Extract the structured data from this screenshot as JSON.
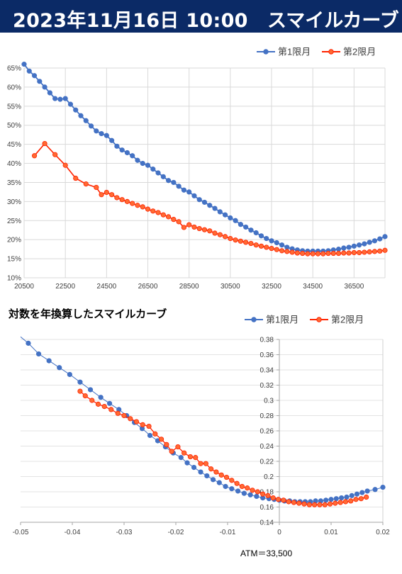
{
  "header": {
    "title": "2023年11月16日 10:00",
    "subtitle": "スマイルカーブ"
  },
  "chart2_title": "対数を年換算したスマイルカーブ",
  "atm_label": "ATM＝33,500",
  "colors": {
    "series1": "#4472c4",
    "series2": "#ff2200",
    "series2_fill": "#ff6a33",
    "header_bg": "#0b2a66"
  },
  "chart_data": [
    {
      "type": "line",
      "title": "",
      "xlabel": "",
      "ylabel": "",
      "xlim": [
        20500,
        38000
      ],
      "ylim": [
        10,
        65
      ],
      "x_ticks": [
        "20500",
        "22500",
        "24500",
        "26500",
        "28500",
        "30500",
        "32500",
        "34500",
        "36500"
      ],
      "y_ticks": [
        "10%",
        "15%",
        "20%",
        "25%",
        "30%",
        "35%",
        "40%",
        "45%",
        "50%",
        "55%",
        "60%",
        "65%"
      ],
      "legend": "top-right",
      "series": [
        {
          "name": "第1限月",
          "x": [
            20500,
            20750,
            21000,
            21250,
            21500,
            21750,
            22000,
            22250,
            22500,
            22750,
            23000,
            23250,
            23500,
            23750,
            24000,
            24250,
            24500,
            24750,
            25000,
            25250,
            25500,
            25750,
            26000,
            26250,
            26500,
            26750,
            27000,
            27250,
            27500,
            27750,
            28000,
            28250,
            28500,
            28750,
            29000,
            29250,
            29500,
            29750,
            30000,
            30250,
            30500,
            30750,
            31000,
            31250,
            31500,
            31750,
            32000,
            32250,
            32500,
            32750,
            33000,
            33250,
            33500,
            33750,
            34000,
            34250,
            34500,
            34750,
            35000,
            35250,
            35500,
            35750,
            36000,
            36250,
            36500,
            36750,
            37000,
            37250,
            37500,
            37750,
            38000
          ],
          "y": [
            66,
            64.2,
            63,
            61.5,
            60,
            58.5,
            57,
            56.8,
            57,
            55.5,
            54,
            52.5,
            51.2,
            49.8,
            48.5,
            47.8,
            47.3,
            46,
            44.5,
            43.5,
            42.8,
            42,
            40.8,
            40,
            39.5,
            38.5,
            37.5,
            36.5,
            35.5,
            35,
            34,
            33,
            32.5,
            31.5,
            30.5,
            29.8,
            29,
            28.2,
            27.3,
            26.5,
            25.7,
            25,
            24,
            23.3,
            22.5,
            21.8,
            21,
            20.3,
            19.7,
            19.2,
            18.6,
            18,
            17.6,
            17.3,
            17.1,
            17,
            17,
            17,
            17,
            17.1,
            17.3,
            17.5,
            17.8,
            18,
            18.3,
            18.6,
            18.9,
            19.3,
            19.7,
            20.2,
            20.8
          ]
        },
        {
          "name": "第2限月",
          "x": [
            21000,
            21500,
            22000,
            22500,
            23000,
            23500,
            24000,
            24250,
            24500,
            24750,
            25000,
            25250,
            25500,
            25750,
            26000,
            26250,
            26500,
            26750,
            27000,
            27250,
            27500,
            27750,
            28000,
            28250,
            28500,
            28750,
            29000,
            29250,
            29500,
            29750,
            30000,
            30250,
            30500,
            30750,
            31000,
            31250,
            31500,
            31750,
            32000,
            32250,
            32500,
            32750,
            33000,
            33250,
            33500,
            33750,
            34000,
            34250,
            34500,
            34750,
            35000,
            35250,
            35500,
            35750,
            36000,
            36250,
            36500,
            36750,
            37000,
            37250,
            37500,
            37750,
            38000
          ],
          "y": [
            42,
            45.2,
            42.3,
            39.5,
            36.1,
            34.6,
            33.7,
            31.8,
            32.4,
            31.8,
            31,
            30.5,
            30,
            29.5,
            29,
            28.6,
            28,
            27.5,
            27.1,
            26.5,
            26,
            25.3,
            24.7,
            23.2,
            23.9,
            23.3,
            22.9,
            22.6,
            22.3,
            21.7,
            21.3,
            20.8,
            20.3,
            19.9,
            19.6,
            19.3,
            19,
            18.6,
            18.3,
            18,
            17.7,
            17.4,
            17.1,
            16.9,
            16.7,
            16.5,
            16.4,
            16.3,
            16.3,
            16.3,
            16.3,
            16.4,
            16.4,
            16.4,
            16.5,
            16.5,
            16.6,
            16.6,
            16.7,
            16.8,
            16.9,
            17,
            17.2
          ]
        }
      ]
    },
    {
      "type": "line",
      "title": "対数を年換算したスマイルカーブ",
      "xlabel": "",
      "ylabel": "",
      "xlim": [
        -0.05,
        0.02
      ],
      "ylim": [
        0.14,
        0.38
      ],
      "x_ticks": [
        "-0.05",
        "-0.04",
        "-0.03",
        "-0.02",
        "-0.01",
        "0",
        "0.01",
        "0.02"
      ],
      "y_ticks": [
        "0.14",
        "0.16",
        "0.18",
        "0.2",
        "0.22",
        "0.24",
        "0.26",
        "0.28",
        "0.3",
        "0.32",
        "0.34",
        "0.36",
        "0.38"
      ],
      "legend": "top-right",
      "series": [
        {
          "name": "第1限月",
          "x": [
            -0.051,
            -0.0485,
            -0.0465,
            -0.0445,
            -0.0425,
            -0.0405,
            -0.0385,
            -0.0365,
            -0.0345,
            -0.0328,
            -0.031,
            -0.0295,
            -0.028,
            -0.0265,
            -0.025,
            -0.0235,
            -0.022,
            -0.0205,
            -0.019,
            -0.0178,
            -0.0165,
            -0.0152,
            -0.014,
            -0.0128,
            -0.0116,
            -0.0104,
            -0.0092,
            -0.008,
            -0.0068,
            -0.0056,
            -0.0044,
            -0.0032,
            -0.002,
            -0.001,
            0.0,
            0.001,
            0.002,
            0.003,
            0.004,
            0.005,
            0.006,
            0.007,
            0.008,
            0.009,
            0.01,
            0.011,
            0.012,
            0.013,
            0.014,
            0.015,
            0.016,
            0.017,
            0.0185,
            0.02
          ],
          "y": [
            0.389,
            0.375,
            0.361,
            0.352,
            0.343,
            0.334,
            0.324,
            0.314,
            0.304,
            0.296,
            0.288,
            0.28,
            0.271,
            0.263,
            0.254,
            0.247,
            0.239,
            0.231,
            0.225,
            0.218,
            0.212,
            0.206,
            0.201,
            0.196,
            0.192,
            0.187,
            0.184,
            0.181,
            0.178,
            0.176,
            0.174,
            0.172,
            0.171,
            0.17,
            0.169,
            0.168,
            0.168,
            0.167,
            0.167,
            0.167,
            0.167,
            0.168,
            0.168,
            0.169,
            0.17,
            0.171,
            0.172,
            0.173,
            0.175,
            0.177,
            0.179,
            0.181,
            0.183,
            0.186
          ]
        },
        {
          "name": "第2限月",
          "x": [
            -0.0385,
            -0.0375,
            -0.0362,
            -0.035,
            -0.0338,
            -0.0325,
            -0.0312,
            -0.03,
            -0.0288,
            -0.0276,
            -0.0264,
            -0.0252,
            -0.024,
            -0.0228,
            -0.0218,
            -0.0208,
            -0.0196,
            -0.0184,
            -0.0172,
            -0.0162,
            -0.0152,
            -0.0142,
            -0.0132,
            -0.0122,
            -0.0112,
            -0.0102,
            -0.0092,
            -0.0082,
            -0.0072,
            -0.0062,
            -0.0052,
            -0.0042,
            -0.0032,
            -0.0022,
            -0.0012,
            -0.0002,
            0.0008,
            0.0018,
            0.0028,
            0.0038,
            0.0048,
            0.0058,
            0.0068,
            0.0078,
            0.0088,
            0.0098,
            0.0108,
            0.0118,
            0.0128,
            0.0138,
            0.0148,
            0.0158,
            0.0168
          ],
          "y": [
            0.312,
            0.306,
            0.3,
            0.295,
            0.292,
            0.288,
            0.283,
            0.28,
            0.276,
            0.272,
            0.268,
            0.266,
            0.256,
            0.249,
            0.242,
            0.233,
            0.239,
            0.231,
            0.226,
            0.225,
            0.217,
            0.217,
            0.21,
            0.206,
            0.202,
            0.199,
            0.195,
            0.191,
            0.187,
            0.185,
            0.182,
            0.18,
            0.177,
            0.175,
            0.172,
            0.17,
            0.169,
            0.167,
            0.166,
            0.165,
            0.164,
            0.163,
            0.163,
            0.163,
            0.163,
            0.164,
            0.165,
            0.166,
            0.167,
            0.168,
            0.17,
            0.171,
            0.173
          ]
        }
      ]
    }
  ]
}
